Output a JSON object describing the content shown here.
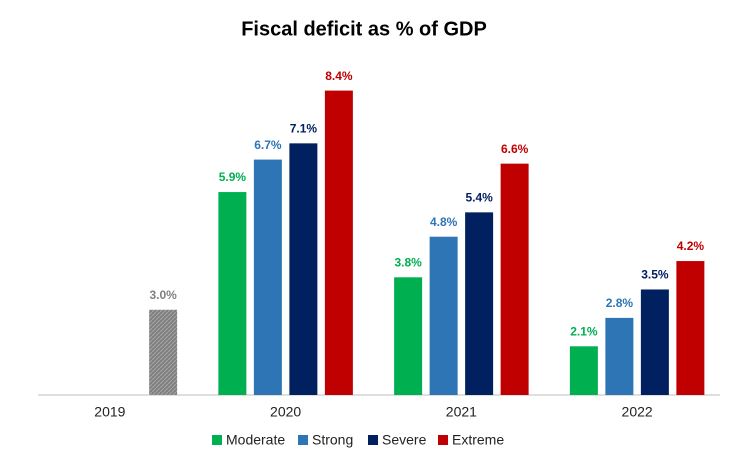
{
  "chart_data": {
    "type": "bar",
    "title": "Fiscal deficit as % of GDP",
    "categories": [
      "2019",
      "2020",
      "2021",
      "2022"
    ],
    "series": [
      {
        "name": "Moderate",
        "color": "#00b050",
        "values": [
          null,
          5.9,
          3.8,
          2.1
        ],
        "value_labels": [
          null,
          "5.9%",
          "3.8%",
          "2.1%"
        ]
      },
      {
        "name": "Strong",
        "color": "#2e75b6",
        "values": [
          null,
          6.7,
          4.8,
          2.8
        ],
        "value_labels": [
          null,
          "6.7%",
          "4.8%",
          "2.8%"
        ]
      },
      {
        "name": "Severe",
        "color": "#002060",
        "values": [
          null,
          7.1,
          5.4,
          3.5
        ],
        "value_labels": [
          null,
          "7.1%",
          "5.4%",
          "3.5%"
        ]
      },
      {
        "name": "Extreme",
        "color": "#c00000",
        "values": [
          null,
          8.4,
          6.6,
          4.2
        ],
        "value_labels": [
          null,
          "8.4%",
          "6.6%",
          "4.2%"
        ]
      },
      {
        "color": "#808080",
        "hatch": true,
        "values": [
          3.0,
          null,
          null,
          null
        ],
        "value_labels": [
          "3.0%",
          null,
          null,
          null
        ]
      }
    ],
    "ylim": [
      0.9,
      9.4
    ]
  }
}
